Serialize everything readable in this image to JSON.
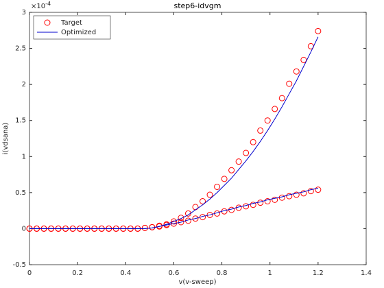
{
  "chart_data": {
    "type": "line",
    "title": "step6-idvgm",
    "x_label": "v(v-sweep)",
    "y_label": "i(vdsana)",
    "y_multiplier": {
      "base": "×10",
      "power": "-4"
    },
    "xlim": [
      0,
      1.4
    ],
    "ylim": [
      -0.5,
      3
    ],
    "xticks": [
      0,
      0.2,
      0.4,
      0.6,
      0.8,
      1,
      1.2,
      1.4
    ],
    "yticks": [
      -0.5,
      0,
      0.5,
      1,
      1.5,
      2,
      2.5,
      3
    ],
    "legend": "upper-left",
    "x": [
      0,
      0.03,
      0.06,
      0.09,
      0.12,
      0.15,
      0.18,
      0.21,
      0.24,
      0.27,
      0.3,
      0.33,
      0.36,
      0.39,
      0.42,
      0.45,
      0.48,
      0.51,
      0.54,
      0.57,
      0.6,
      0.63,
      0.66,
      0.69,
      0.72,
      0.75,
      0.78,
      0.81,
      0.84,
      0.87,
      0.9,
      0.93,
      0.96,
      0.99,
      1.02,
      1.05,
      1.08,
      1.11,
      1.14,
      1.17,
      1.2
    ],
    "series": [
      {
        "name": "Target",
        "color": "#ff0000",
        "marker": "circle",
        "curves": [
          [
            0,
            0,
            0,
            0,
            0,
            0,
            0,
            0,
            0,
            0,
            0,
            0,
            0,
            0,
            0,
            0,
            0.01,
            0.02,
            0.04,
            0.06,
            0.1,
            0.15,
            0.21,
            0.3,
            0.38,
            0.47,
            0.58,
            0.69,
            0.81,
            0.93,
            1.05,
            1.2,
            1.36,
            1.5,
            1.66,
            1.81,
            2.01,
            2.18,
            2.34,
            2.53,
            2.74
          ],
          [
            0,
            0,
            0,
            0,
            0,
            0,
            0,
            0,
            0,
            0,
            0,
            0,
            0,
            0,
            0,
            0,
            0.01,
            0.02,
            0.03,
            0.05,
            0.07,
            0.09,
            0.11,
            0.14,
            0.16,
            0.19,
            0.21,
            0.24,
            0.26,
            0.29,
            0.31,
            0.33,
            0.36,
            0.38,
            0.4,
            0.43,
            0.45,
            0.47,
            0.49,
            0.52,
            0.54
          ]
        ]
      },
      {
        "name": "Optimized",
        "color": "#0000cc",
        "marker": "line",
        "curves": [
          [
            0,
            0,
            0,
            0,
            0,
            0,
            0,
            0,
            0,
            0,
            0,
            0,
            0,
            0,
            0,
            0,
            0,
            0.01,
            0.03,
            0.06,
            0.1,
            0.14,
            0.19,
            0.26,
            0.33,
            0.41,
            0.5,
            0.6,
            0.7,
            0.82,
            0.94,
            1.07,
            1.21,
            1.36,
            1.52,
            1.69,
            1.87,
            2.05,
            2.25,
            2.45,
            2.66
          ],
          [
            0,
            0,
            0,
            0,
            0,
            0,
            0,
            0,
            0,
            0,
            0,
            0,
            0,
            0,
            0,
            0,
            0,
            0.01,
            0.03,
            0.05,
            0.07,
            0.09,
            0.12,
            0.14,
            0.17,
            0.19,
            0.22,
            0.25,
            0.27,
            0.3,
            0.32,
            0.35,
            0.37,
            0.4,
            0.42,
            0.44,
            0.47,
            0.49,
            0.51,
            0.54,
            0.56
          ]
        ]
      }
    ]
  }
}
